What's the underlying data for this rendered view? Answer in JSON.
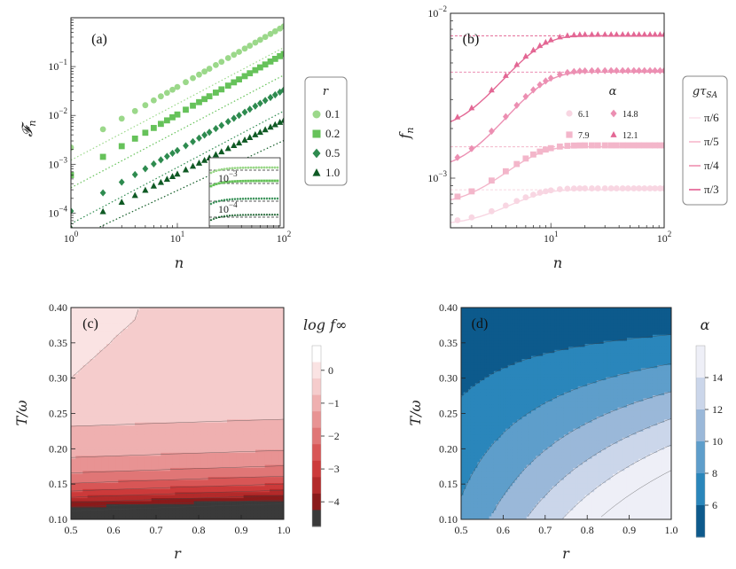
{
  "chart_data": [
    {
      "panel": "(a)",
      "type": "scatter",
      "xscale": "log",
      "yscale": "log",
      "xlim": [
        1,
        100
      ],
      "ylim": [
        5e-05,
        1
      ],
      "xlabel": "n",
      "ylabel": "𝓕n",
      "xticks": [
        "10^0",
        "10^1",
        "10^2"
      ],
      "yticks": [
        "10^-4",
        "10^-3",
        "10^-2",
        "10^-1"
      ],
      "legend_title": "r",
      "legend_position": "right",
      "fit_lines": "dotted",
      "series": [
        {
          "name": "0.1",
          "marker": "circle",
          "color": "#9bd88a",
          "a": 0.0022,
          "b": 1.24
        },
        {
          "name": "0.2",
          "marker": "square",
          "color": "#66c25a",
          "a": 0.0006,
          "b": 1.24
        },
        {
          "name": "0.5",
          "marker": "diamond",
          "color": "#2e8b4f",
          "a": 0.00011,
          "b": 1.24
        },
        {
          "name": "1.0",
          "marker": "triangle",
          "color": "#0f5a24",
          "a": 5e-05,
          "b": 1.1
        }
      ],
      "inset": {
        "yticks": [
          "10^-3",
          "10^-4"
        ],
        "position": "bottom-right"
      }
    },
    {
      "panel": "(b)",
      "type": "scatter",
      "xscale": "log",
      "yscale": "log",
      "xlim": [
        1.3,
        100
      ],
      "ylim": [
        0.0005,
        0.01
      ],
      "xlabel": "n",
      "ylabel": "fn",
      "xticks": [
        "10^1",
        "10^2"
      ],
      "yticks": [
        "10^-3",
        "10^-2"
      ],
      "legend_title": "gτSA",
      "legend_labels": [
        "π/6",
        "π/5",
        "π/4",
        "π/3"
      ],
      "legend_colors": [
        "#fbe3ec",
        "#f6b8cc",
        "#ee8fb0",
        "#e35d8f"
      ],
      "alpha_title": "α",
      "series": [
        {
          "alpha": "6.1",
          "marker": "circle",
          "color": "#f8d6e2",
          "f_inf": 0.00085,
          "f0": 0.00053,
          "n_half": 4.5
        },
        {
          "alpha": "7.9",
          "marker": "square",
          "color": "#f3b6ca",
          "f_inf": 0.00155,
          "f0": 0.00072,
          "n_half": 4.5
        },
        {
          "alpha": "14.8",
          "marker": "diamond",
          "color": "#ec8fb2",
          "f_inf": 0.0044,
          "f0": 0.0012,
          "n_half": 5.5
        },
        {
          "alpha": "12.1",
          "marker": "triangle",
          "color": "#e36794",
          "f_inf": 0.0073,
          "f0": 0.0021,
          "n_half": 5.0
        }
      ]
    },
    {
      "panel": "(c)",
      "type": "heatmap",
      "xlim": [
        0.5,
        1.0
      ],
      "ylim": [
        0.1,
        0.4
      ],
      "xlabel": "r",
      "ylabel": "T/ω",
      "xticks": [
        "0.5",
        "0.6",
        "0.7",
        "0.8",
        "0.9",
        "1.0"
      ],
      "yticks": [
        "0.10",
        "0.15",
        "0.20",
        "0.25",
        "0.30",
        "0.35",
        "0.40"
      ],
      "colorbar_title": "log f∞",
      "colorbar_ticks": [
        "0",
        "−1",
        "−2",
        "−3",
        "−4"
      ],
      "levels": [
        -4.5,
        -4,
        -3.5,
        -3,
        -2.5,
        -2,
        -1.5,
        -1,
        -0.5,
        0,
        0.5
      ],
      "colors": [
        "#3a3a3a",
        "#8a1a1a",
        "#b32a2a",
        "#cc3a3a",
        "#d85656",
        "#e07676",
        "#e89393",
        "#efb0b0",
        "#f5cccc",
        "#fae3e3",
        "#ffffff"
      ]
    },
    {
      "panel": "(d)",
      "type": "heatmap",
      "xlim": [
        0.5,
        1.0
      ],
      "ylim": [
        0.1,
        0.4
      ],
      "xlabel": "r",
      "ylabel": "T/ω",
      "xticks": [
        "0.5",
        "0.6",
        "0.7",
        "0.8",
        "0.9",
        "1.0"
      ],
      "yticks": [
        "0.10",
        "0.15",
        "0.20",
        "0.25",
        "0.30",
        "0.35",
        "0.40"
      ],
      "colorbar_title": "α",
      "colorbar_ticks": [
        "6",
        "8",
        "10",
        "12",
        "14"
      ],
      "levels": [
        4,
        6,
        8,
        10,
        12,
        14,
        16
      ],
      "colors": [
        "#0d5a8c",
        "#2a86bb",
        "#5e9ecb",
        "#9ab8d9",
        "#cbd6ea",
        "#eeeff7"
      ]
    }
  ]
}
